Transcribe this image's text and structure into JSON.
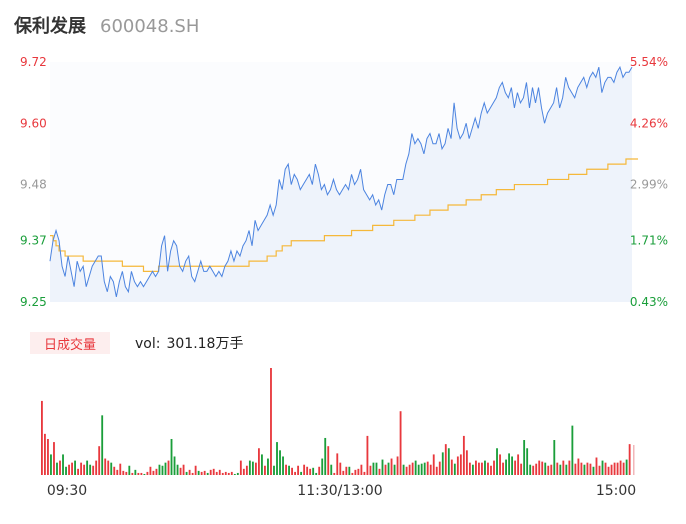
{
  "header": {
    "stock_name": "保利发展",
    "stock_code": "600048.SH"
  },
  "volume_panel": {
    "badge_label": "日成交量",
    "vol_label": "vol:",
    "vol_value": "301.18万手"
  },
  "colors": {
    "up": "#e8383d",
    "down": "#1a9e3a",
    "flat": "#999999",
    "price_line": "#4c84e0",
    "price_fill": "#eef3fb",
    "avg_line": "#f5b83a"
  },
  "chart_data": [
    {
      "type": "line",
      "title": "",
      "xlabel": "",
      "ylabel": "",
      "ylim": [
        9.25,
        9.72
      ],
      "y_ticks": [
        {
          "price": "9.72",
          "pct": "5.54%",
          "tone": "up"
        },
        {
          "price": "9.60",
          "pct": "4.26%",
          "tone": "up"
        },
        {
          "price": "9.48",
          "pct": "2.99%",
          "tone": "flat"
        },
        {
          "price": "9.37",
          "pct": "1.71%",
          "tone": "down"
        },
        {
          "price": "9.25",
          "pct": "0.43%",
          "tone": "down"
        }
      ],
      "x_ticks": [
        "09:30",
        "11:30/13:00",
        "15:00"
      ],
      "series": [
        {
          "values": [
            9.33,
            9.37,
            9.39,
            9.37,
            9.32,
            9.3,
            9.34,
            9.31,
            9.28,
            9.33,
            9.31,
            9.32,
            9.28,
            9.3,
            9.32,
            9.33,
            9.34,
            9.34,
            9.29,
            9.27,
            9.3,
            9.29,
            9.26,
            9.29,
            9.31,
            9.28,
            9.27,
            9.31,
            9.29,
            9.28,
            9.29,
            9.28,
            9.29,
            9.3,
            9.31,
            9.3,
            9.31,
            9.36,
            9.38,
            9.31,
            9.35,
            9.37,
            9.36,
            9.32,
            9.31,
            9.33,
            9.34,
            9.3,
            9.29,
            9.31,
            9.33,
            9.31,
            9.31,
            9.32,
            9.31,
            9.3,
            9.31,
            9.3,
            9.32,
            9.33,
            9.35,
            9.33,
            9.35,
            9.34,
            9.36,
            9.37,
            9.39,
            9.36,
            9.41,
            9.39,
            9.4,
            9.41,
            9.42,
            9.44,
            9.42,
            9.44,
            9.49,
            9.47,
            9.51,
            9.52,
            9.48,
            9.5,
            9.49,
            9.47,
            9.48,
            9.49,
            9.5,
            9.48,
            9.52,
            9.5,
            9.47,
            9.48,
            9.46,
            9.47,
            9.49,
            9.47,
            9.46,
            9.47,
            9.48,
            9.47,
            9.5,
            9.48,
            9.49,
            9.51,
            9.47,
            9.46,
            9.45,
            9.46,
            9.44,
            9.45,
            9.43,
            9.46,
            9.48,
            9.48,
            9.46,
            9.49,
            9.49,
            9.49,
            9.52,
            9.54,
            9.58,
            9.56,
            9.57,
            9.56,
            9.54,
            9.57,
            9.58,
            9.56,
            9.56,
            9.58,
            9.55,
            9.56,
            9.59,
            9.57,
            9.64,
            9.59,
            9.57,
            9.58,
            9.6,
            9.57,
            9.59,
            9.61,
            9.59,
            9.62,
            9.64,
            9.62,
            9.63,
            9.64,
            9.65,
            9.67,
            9.68,
            9.66,
            9.65,
            9.67,
            9.63,
            9.66,
            9.64,
            9.65,
            9.68,
            9.63,
            9.67,
            9.64,
            9.67,
            9.63,
            9.6,
            9.62,
            9.63,
            9.64,
            9.67,
            9.63,
            9.65,
            9.69,
            9.67,
            9.66,
            9.65,
            9.67,
            9.68,
            9.69,
            9.67,
            9.69,
            9.7,
            9.69,
            9.71,
            9.66,
            9.68,
            9.69,
            9.69,
            9.68,
            9.7,
            9.71,
            9.69,
            9.7,
            9.7,
            9.71
          ]
        },
        {
          "values": [
            9.38,
            9.37,
            9.36,
            9.35,
            9.35,
            9.34,
            9.34,
            9.34,
            9.34,
            9.34,
            9.34,
            9.33,
            9.33,
            9.33,
            9.33,
            9.33,
            9.33,
            9.33,
            9.33,
            9.33,
            9.33,
            9.33,
            9.33,
            9.33,
            9.32,
            9.32,
            9.32,
            9.32,
            9.32,
            9.32,
            9.32,
            9.31,
            9.31,
            9.31,
            9.31,
            9.31,
            9.32,
            9.32,
            9.32,
            9.32,
            9.32,
            9.32,
            9.32,
            9.32,
            9.32,
            9.32,
            9.32,
            9.32,
            9.32,
            9.32,
            9.32,
            9.32,
            9.32,
            9.32,
            9.32,
            9.32,
            9.32,
            9.32,
            9.32,
            9.32,
            9.32,
            9.32,
            9.32,
            9.32,
            9.32,
            9.32,
            9.33,
            9.33,
            9.33,
            9.33,
            9.33,
            9.33,
            9.34,
            9.34,
            9.34,
            9.35,
            9.35,
            9.36,
            9.36,
            9.36,
            9.37,
            9.37,
            9.37,
            9.37,
            9.37,
            9.37,
            9.37,
            9.37,
            9.37,
            9.37,
            9.37,
            9.38,
            9.38,
            9.38,
            9.38,
            9.38,
            9.38,
            9.38,
            9.38,
            9.38,
            9.39,
            9.39,
            9.39,
            9.39,
            9.39,
            9.39,
            9.39,
            9.4,
            9.4,
            9.4,
            9.4,
            9.4,
            9.4,
            9.4,
            9.41,
            9.41,
            9.41,
            9.41,
            9.41,
            9.41,
            9.41,
            9.42,
            9.42,
            9.42,
            9.42,
            9.42,
            9.43,
            9.43,
            9.43,
            9.43,
            9.43,
            9.43,
            9.44,
            9.44,
            9.44,
            9.44,
            9.44,
            9.44,
            9.45,
            9.45,
            9.45,
            9.45,
            9.45,
            9.46,
            9.46,
            9.46,
            9.46,
            9.46,
            9.47,
            9.47,
            9.47,
            9.47,
            9.47,
            9.47,
            9.48,
            9.48,
            9.48,
            9.48,
            9.48,
            9.48,
            9.48,
            9.48,
            9.48,
            9.48,
            9.48,
            9.49,
            9.49,
            9.49,
            9.49,
            9.49,
            9.49,
            9.49,
            9.5,
            9.5,
            9.5,
            9.5,
            9.5,
            9.5,
            9.51,
            9.51,
            9.51,
            9.51,
            9.51,
            9.51,
            9.51,
            9.52,
            9.52,
            9.52,
            9.52,
            9.52,
            9.52,
            9.53,
            9.53,
            9.53,
            9.53,
            9.53
          ]
        }
      ]
    },
    {
      "type": "bar",
      "title": "",
      "xlabel": "",
      "ylabel": "",
      "x_ticks": [
        "09:30",
        "11:30/13:00",
        "15:00"
      ],
      "series": [
        {
          "values": [
            72,
            40,
            35,
            20,
            32,
            12,
            14,
            20,
            8,
            10,
            12,
            14,
            6,
            12,
            10,
            14,
            10,
            9,
            14,
            28,
            58,
            16,
            14,
            12,
            8,
            5,
            11,
            4,
            3,
            9,
            2,
            5,
            2,
            2,
            1,
            3,
            8,
            4,
            6,
            10,
            9,
            12,
            14,
            35,
            18,
            10,
            7,
            10,
            3,
            5,
            2,
            9,
            4,
            3,
            4,
            2,
            5,
            6,
            3,
            5,
            2,
            3,
            2,
            3,
            1,
            2,
            14,
            6,
            9,
            14,
            13,
            12,
            26,
            20,
            9,
            16,
            104,
            9,
            32,
            24,
            18,
            10,
            9,
            7,
            3,
            9,
            3,
            10,
            8,
            6,
            7,
            2,
            8,
            16,
            36,
            28,
            10,
            2,
            21,
            12,
            4,
            8,
            8,
            2,
            5,
            6,
            10,
            3,
            38,
            9,
            12,
            12,
            6,
            15,
            10,
            12,
            16,
            10,
            18,
            62,
            10,
            8,
            10,
            12,
            14,
            10,
            11,
            12,
            13,
            10,
            20,
            8,
            13,
            22,
            30,
            26,
            15,
            11,
            18,
            20,
            38,
            24,
            12,
            10,
            14,
            12,
            12,
            14,
            12,
            9,
            14,
            26,
            20,
            12,
            15,
            21,
            18,
            14,
            20,
            11,
            34,
            26,
            10,
            9,
            11,
            14,
            13,
            12,
            9,
            10,
            34,
            12,
            10,
            14,
            10,
            14,
            48,
            11,
            16,
            12,
            10,
            12,
            11,
            8,
            17,
            9,
            14,
            12,
            8,
            10,
            12,
            12,
            14,
            12,
            15,
            30
          ],
          "directions": [
            "up",
            "up",
            "up",
            "down",
            "up",
            "down",
            "up",
            "down",
            "down",
            "up",
            "up",
            "down",
            "up",
            "up",
            "up",
            "down",
            "down",
            "up",
            "up",
            "up",
            "down",
            "up",
            "up",
            "down",
            "up",
            "up",
            "up",
            "up",
            "up",
            "down",
            "up",
            "down",
            "up",
            "up",
            "down",
            "up",
            "up",
            "up",
            "up",
            "down",
            "down",
            "down",
            "up",
            "down",
            "down",
            "down",
            "up",
            "up",
            "down",
            "up",
            "up",
            "up",
            "down",
            "up",
            "up",
            "down",
            "up",
            "up",
            "up",
            "up",
            "up",
            "up",
            "up",
            "up",
            "down",
            "down",
            "up",
            "up",
            "up",
            "down",
            "down",
            "up",
            "up",
            "down",
            "up",
            "down",
            "up",
            "down",
            "down",
            "down",
            "down",
            "up",
            "down",
            "up",
            "up",
            "up",
            "down",
            "up",
            "up",
            "up",
            "down",
            "down",
            "up",
            "down",
            "down",
            "up",
            "down",
            "up",
            "up",
            "up",
            "up",
            "up",
            "down",
            "up",
            "up",
            "up",
            "up",
            "up",
            "up",
            "up",
            "down",
            "down",
            "up",
            "down",
            "up",
            "down",
            "up",
            "down",
            "up",
            "up",
            "down",
            "up",
            "up",
            "up",
            "down",
            "down",
            "down",
            "down",
            "up",
            "up",
            "up",
            "up",
            "up",
            "down",
            "up",
            "down",
            "up",
            "down",
            "up",
            "up",
            "up",
            "up",
            "up",
            "down",
            "up",
            "up",
            "up",
            "down",
            "up",
            "up",
            "up",
            "down",
            "up",
            "up",
            "down",
            "down",
            "down",
            "up",
            "up",
            "up",
            "down",
            "down",
            "down",
            "up",
            "up",
            "up",
            "up",
            "down",
            "up",
            "up",
            "down",
            "up",
            "down",
            "up",
            "down",
            "up",
            "down",
            "up",
            "up",
            "up",
            "down",
            "up",
            "up",
            "down",
            "up",
            "up",
            "down",
            "up",
            "up",
            "up",
            "up",
            "up",
            "up",
            "up",
            "down",
            "up"
          ]
        }
      ]
    }
  ]
}
